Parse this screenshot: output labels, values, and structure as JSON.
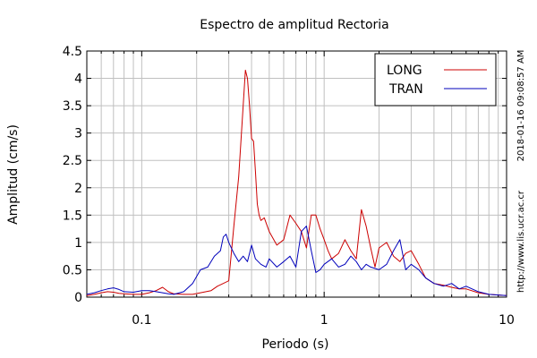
{
  "chart_data": {
    "type": "line",
    "title": "Espectro de amplitud Rectoria",
    "xlabel": "Periodo (s)",
    "ylabel": "Amplitud (cm/s)",
    "xscale": "log",
    "xlim": [
      0.05,
      10
    ],
    "ylim": [
      0,
      4.5
    ],
    "x_tick_labels": [
      {
        "value": 0.1,
        "label": "0.1"
      },
      {
        "value": 1,
        "label": "1"
      },
      {
        "value": 10,
        "label": "10"
      }
    ],
    "y_tick_labels": [
      {
        "value": 0,
        "label": "0"
      },
      {
        "value": 0.5,
        "label": "0.5"
      },
      {
        "value": 1,
        "label": "1"
      },
      {
        "value": 1.5,
        "label": "1.5"
      },
      {
        "value": 2,
        "label": "2"
      },
      {
        "value": 2.5,
        "label": "2.5"
      },
      {
        "value": 3,
        "label": "3"
      },
      {
        "value": 3.5,
        "label": "3.5"
      },
      {
        "value": 4,
        "label": "4"
      },
      {
        "value": 4.5,
        "label": "4.5"
      }
    ],
    "grid": true,
    "legend_position": "top-right",
    "side_annotations": [
      "2018-01-16 09:08:57 AM",
      "http://www.lis.ucr.ac.cr"
    ],
    "series": [
      {
        "name": "LONG",
        "color": "#cc0000",
        "x": [
          0.05,
          0.055,
          0.06,
          0.065,
          0.07,
          0.075,
          0.08,
          0.09,
          0.1,
          0.11,
          0.12,
          0.13,
          0.14,
          0.15,
          0.17,
          0.19,
          0.21,
          0.24,
          0.26,
          0.28,
          0.3,
          0.32,
          0.34,
          0.36,
          0.37,
          0.38,
          0.39,
          0.4,
          0.41,
          0.42,
          0.43,
          0.44,
          0.45,
          0.47,
          0.5,
          0.55,
          0.6,
          0.65,
          0.7,
          0.75,
          0.8,
          0.85,
          0.9,
          0.95,
          1.0,
          1.05,
          1.1,
          1.2,
          1.3,
          1.4,
          1.5,
          1.6,
          1.7,
          1.8,
          1.9,
          2.0,
          2.2,
          2.4,
          2.6,
          2.8,
          3.0,
          3.3,
          3.6,
          4.0,
          4.5,
          5.0,
          5.5,
          6.0,
          7.0,
          8.0,
          9.0,
          10.0
        ],
        "y": [
          0.03,
          0.05,
          0.08,
          0.1,
          0.09,
          0.07,
          0.06,
          0.05,
          0.05,
          0.08,
          0.12,
          0.18,
          0.1,
          0.06,
          0.05,
          0.05,
          0.08,
          0.12,
          0.2,
          0.25,
          0.3,
          1.3,
          2.2,
          3.5,
          4.15,
          4.0,
          3.5,
          2.9,
          2.85,
          2.3,
          1.7,
          1.5,
          1.4,
          1.45,
          1.2,
          0.95,
          1.05,
          1.5,
          1.35,
          1.2,
          0.9,
          1.5,
          1.5,
          1.25,
          1.05,
          0.85,
          0.7,
          0.8,
          1.05,
          0.85,
          0.7,
          1.6,
          1.3,
          0.9,
          0.55,
          0.9,
          1.0,
          0.75,
          0.65,
          0.8,
          0.85,
          0.6,
          0.35,
          0.25,
          0.22,
          0.18,
          0.15,
          0.15,
          0.08,
          0.05,
          0.04,
          0.03
        ]
      },
      {
        "name": "TRAN",
        "color": "#0000bb",
        "x": [
          0.05,
          0.055,
          0.06,
          0.065,
          0.07,
          0.075,
          0.08,
          0.09,
          0.1,
          0.11,
          0.12,
          0.13,
          0.14,
          0.15,
          0.17,
          0.19,
          0.21,
          0.23,
          0.25,
          0.27,
          0.28,
          0.29,
          0.3,
          0.32,
          0.34,
          0.36,
          0.38,
          0.4,
          0.42,
          0.45,
          0.48,
          0.5,
          0.55,
          0.6,
          0.65,
          0.7,
          0.75,
          0.8,
          0.85,
          0.9,
          0.95,
          1.0,
          1.1,
          1.2,
          1.3,
          1.4,
          1.5,
          1.6,
          1.7,
          1.8,
          2.0,
          2.2,
          2.4,
          2.6,
          2.8,
          3.0,
          3.3,
          3.6,
          4.0,
          4.5,
          5.0,
          5.5,
          6.0,
          7.0,
          8.0,
          9.0,
          10.0
        ],
        "y": [
          0.05,
          0.08,
          0.12,
          0.15,
          0.17,
          0.14,
          0.1,
          0.09,
          0.12,
          0.12,
          0.1,
          0.08,
          0.06,
          0.05,
          0.1,
          0.25,
          0.5,
          0.55,
          0.75,
          0.85,
          1.1,
          1.15,
          1.0,
          0.8,
          0.65,
          0.75,
          0.65,
          0.95,
          0.7,
          0.6,
          0.55,
          0.7,
          0.55,
          0.65,
          0.75,
          0.55,
          1.2,
          1.3,
          0.85,
          0.45,
          0.5,
          0.6,
          0.7,
          0.55,
          0.6,
          0.75,
          0.65,
          0.5,
          0.6,
          0.55,
          0.5,
          0.6,
          0.85,
          1.05,
          0.5,
          0.6,
          0.5,
          0.35,
          0.25,
          0.2,
          0.25,
          0.15,
          0.2,
          0.1,
          0.05,
          0.04,
          0.03
        ]
      }
    ]
  }
}
